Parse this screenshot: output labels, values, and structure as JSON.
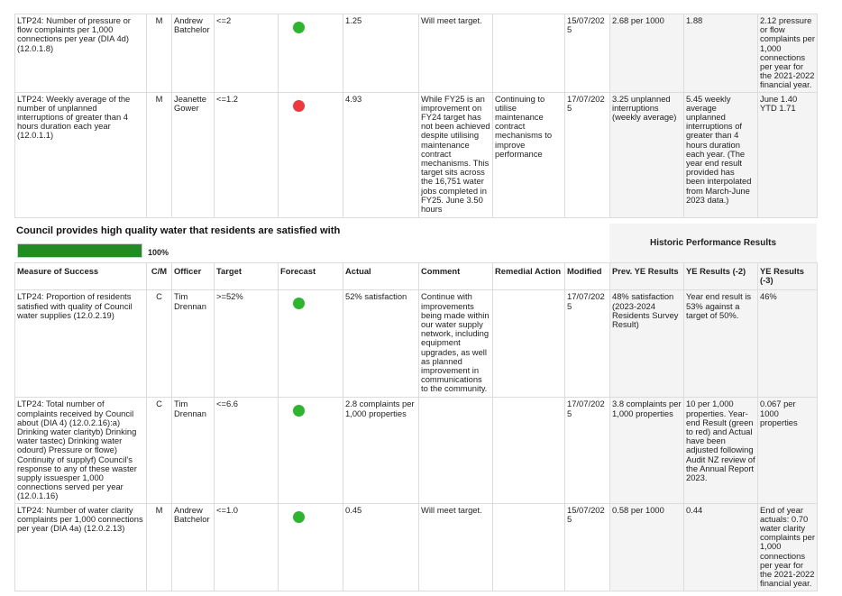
{
  "colors": {
    "green": "#2db52d",
    "red": "#f0373c",
    "progress": "#228b22"
  },
  "table1": {
    "rows": [
      {
        "measure": "LTP24: Number of pressure or flow complaints per 1,000 connections per year (DIA 4d)  (12.0.1.8)",
        "cm": "M",
        "officer": "Andrew Batchelor",
        "target": "<=2",
        "forecast": "green",
        "actual": "1.25",
        "comment": "Will meet target.",
        "remedial": "",
        "modified": "15/07/2025",
        "prev_ye": "2.68 per 1000",
        "ye2": "1.88",
        "ye3": "2.12 pressure or flow complaints per 1,000 connections per year for the 2021-2022 financial year."
      },
      {
        "measure": "LTP24: Weekly average of the number of unplanned interruptions of greater than 4 hours duration each year (12.0.1.1)",
        "cm": "M",
        "officer": "Jeanette Gower",
        "target": "<=1.2",
        "forecast": "red",
        "actual": "4.93",
        "comment": "While FY25 is an improvement on FY24 target has not been achieved despite utilising maintenance contract mechanisms.  This target sits across the 16,751 water jobs completed in FY25. June 3.50 hours",
        "remedial": "Continuing to utilise maintenance contract mechanisms to improve performance",
        "modified": "17/07/2025",
        "prev_ye": "3.25 unplanned interruptions (weekly average)",
        "ye2": "5.45 weekly average unplanned interruptions of greater than 4 hours duration each year. (The year end result provided has been interpolated from March-June 2023 data.)",
        "ye3": "June 1.40 YTD 1.71"
      }
    ]
  },
  "section": {
    "title": "Council provides high quality water that residents are satisfied with",
    "progress_percent": 100,
    "progress_label": "100%",
    "historic_header": "Historic Performance Results"
  },
  "table2": {
    "headers": {
      "measure": "Measure of Success",
      "cm": "C/M",
      "officer": "Officer",
      "target": "Target",
      "forecast": "Forecast",
      "actual": "Actual",
      "comment": "Comment",
      "remedial": "Remedial Action",
      "modified": "Modified",
      "prev_ye": "Prev. YE Results",
      "ye2": "YE Results (-2)",
      "ye3": "YE Results (-3)"
    },
    "rows": [
      {
        "measure": "LTP24: Proportion of residents satisfied with quality of Council water supplies (12.0.2.19)",
        "cm": "C",
        "officer": "Tim Drennan",
        "target": ">=52%",
        "forecast": "green",
        "actual": "52% satisfaction",
        "comment": "Continue with improvements being made within our water supply network, including equipment upgrades, as well as planned improvement in communications to the community.",
        "remedial": "",
        "modified": "17/07/2025",
        "prev_ye": "48% satisfaction (2023-2024 Residents Survey Result)",
        "ye2": "Year end result is 53% against a target of 50%.",
        "ye3": "46%"
      },
      {
        "measure": "LTP24: Total number of complaints received by Council about (DIA 4) (12.0.2.16):a) Drinking water clarityb) Drinking water tastec) Drinking water odourd) Pressure or flowe) Continuity of supplyf) Council's response to any of these waster supply issuesper 1,000 connections served per year (12.0.1.16)",
        "cm": "C",
        "officer": "Tim Drennan",
        "target": "<=6.6",
        "forecast": "green",
        "actual": "2.8 complaints per 1,000 properties",
        "comment": "",
        "remedial": "",
        "modified": "17/07/2025",
        "prev_ye": "3.8 complaints per 1,000 properties",
        "ye2": "10 per 1,000 properties. Year-end Result (green to red) and Actual have been adjusted following Audit NZ review of the Annual Report 2023.",
        "ye3": "0.067 per 1000 properties"
      },
      {
        "measure": "LTP24: Number of water clarity complaints per 1,000 connections per year (DIA 4a) (12.0.2.13)",
        "cm": "M",
        "officer": "Andrew Batchelor",
        "target": "<=1.0",
        "forecast": "green",
        "actual": "0.45",
        "comment": "Will meet target.",
        "remedial": "",
        "modified": "15/07/2025",
        "prev_ye": "0.58 per 1000",
        "ye2": "0.44",
        "ye3": "End of year actuals: 0.70 water clarity complaints per 1,000 connections per year for the 2021-2022 financial year."
      }
    ]
  }
}
